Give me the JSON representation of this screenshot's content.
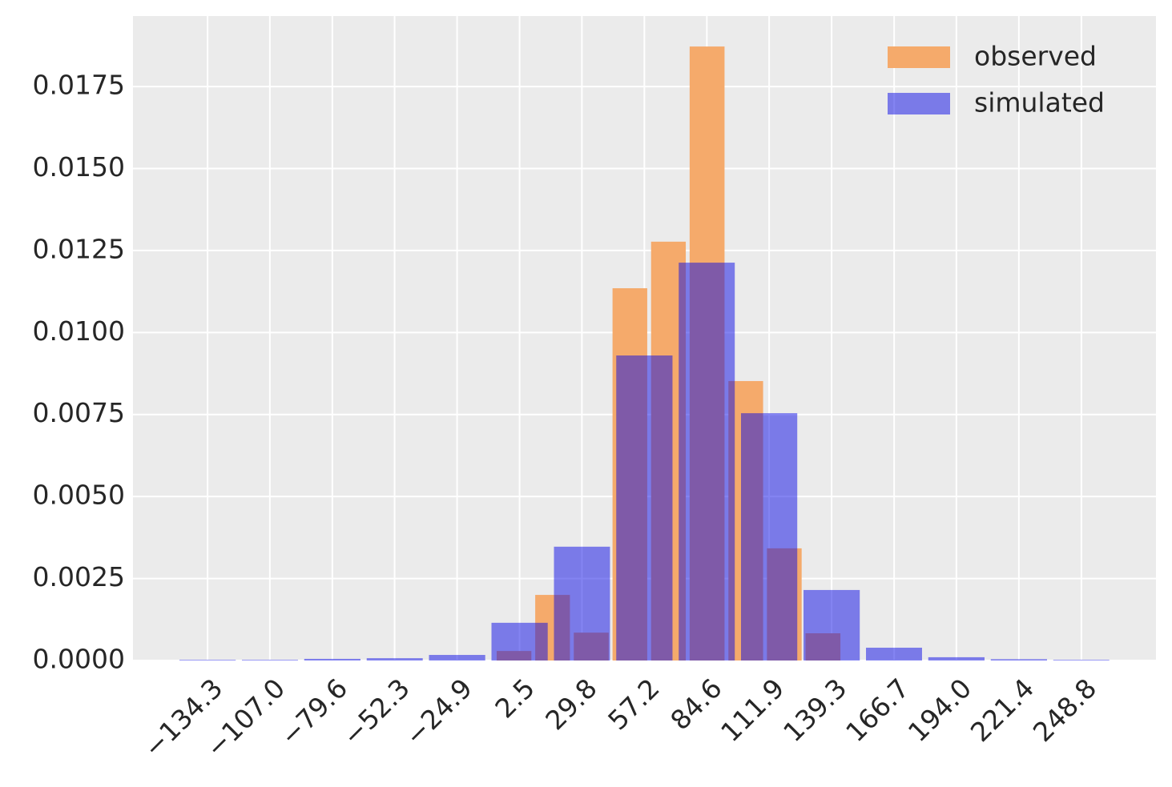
{
  "chart_data": {
    "type": "histogram",
    "xlim": [
      -167.0,
      281.5
    ],
    "ylim": [
      0,
      0.01965
    ],
    "xticks": [
      {
        "value": -134.3,
        "label": "−134.3"
      },
      {
        "value": -107.0,
        "label": "−107.0"
      },
      {
        "value": -79.6,
        "label": "−79.6"
      },
      {
        "value": -52.3,
        "label": "−52.3"
      },
      {
        "value": -24.9,
        "label": "−24.9"
      },
      2.5,
      29.8,
      57.2,
      84.6,
      111.9,
      139.3,
      166.7,
      {
        "value": 194.0,
        "label": "194.0"
      },
      221.4,
      248.8
    ],
    "yticks": [
      {
        "value": 0,
        "label": "0.0000"
      },
      0.0025,
      {
        "value": 0.005,
        "label": "0.0050"
      },
      0.0075,
      {
        "value": 0.01,
        "label": "0.0100"
      },
      0.0125,
      {
        "value": 0.015,
        "label": "0.0150"
      },
      0.0175
    ],
    "grid": true,
    "legend": "upper right",
    "series": [
      {
        "name": "observed",
        "color": "#f5aa6b",
        "bins": [
          -8.4,
          8.5,
          25.4,
          42.4,
          59.3,
          76.2,
          93.2,
          110.1,
          127.0,
          144.0
        ],
        "values": [
          0.00029,
          0.002,
          0.00085,
          0.01135,
          0.01277,
          0.01872,
          0.00852,
          0.00342,
          0.00083
        ]
      },
      {
        "name": "simulated",
        "color": "#0a0ae6",
        "bins": [
          -148.0,
          -120.6,
          -93.3,
          -65.9,
          -38.6,
          -11.2,
          16.2,
          43.5,
          70.9,
          98.2,
          125.6,
          153.0,
          180.3,
          207.7,
          235.1,
          262.4
        ],
        "values": [
          2e-05,
          2e-05,
          5e-05,
          7e-05,
          0.00017,
          0.00115,
          0.00347,
          0.0093,
          0.01213,
          0.00754,
          0.00215,
          0.00039,
          0.0001,
          4e-05,
          2e-05
        ]
      }
    ]
  }
}
